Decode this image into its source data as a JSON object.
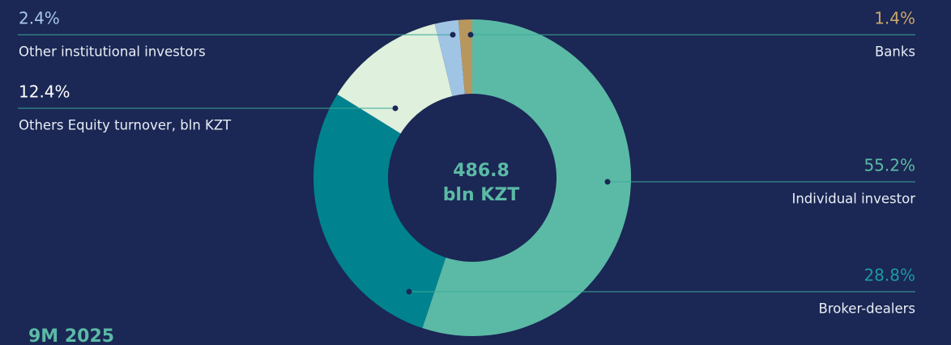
{
  "chart_data": {
    "type": "donut",
    "categories": [
      "Individual investor",
      "Broker-dealers",
      "Others Equity turnover, bln KZT",
      "Other institutional investors",
      "Banks"
    ],
    "values": [
      55.2,
      28.8,
      12.4,
      2.4,
      1.4
    ],
    "value_labels": [
      "55.2%",
      "28.8%",
      "12.4%",
      "2.4%",
      "1.4%"
    ],
    "colors": [
      "#5bbaa6",
      "#00838f",
      "#dff0dc",
      "#a0c4e4",
      "#b8975f"
    ],
    "label_colors": [
      "#5bbaa6",
      "#1a9aa6",
      "#ffffff",
      "#a8c8e8",
      "#c9a66b"
    ],
    "total": 486.8,
    "total_unit": "bln KZT",
    "footer": "9M 2025"
  }
}
